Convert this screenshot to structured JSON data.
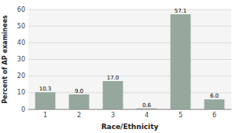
{
  "chart_data": {
    "type": "bar",
    "xlabel": "Race/Ethnicity",
    "ylabel": "Percent of AP examinees",
    "categories": [
      "1",
      "2",
      "3",
      "4",
      "5",
      "6"
    ],
    "values": [
      10.3,
      9.0,
      17.0,
      0.6,
      57.1,
      6.0
    ],
    "value_labels": [
      "10.3",
      "9.0",
      "17.0",
      "0.6",
      "57.1",
      "6.0"
    ],
    "color": "#96A89E",
    "ylim": [
      0,
      60
    ],
    "yticks": [
      0,
      10,
      20,
      30,
      40,
      50,
      60
    ],
    "grid": true,
    "data_labels": true
  }
}
